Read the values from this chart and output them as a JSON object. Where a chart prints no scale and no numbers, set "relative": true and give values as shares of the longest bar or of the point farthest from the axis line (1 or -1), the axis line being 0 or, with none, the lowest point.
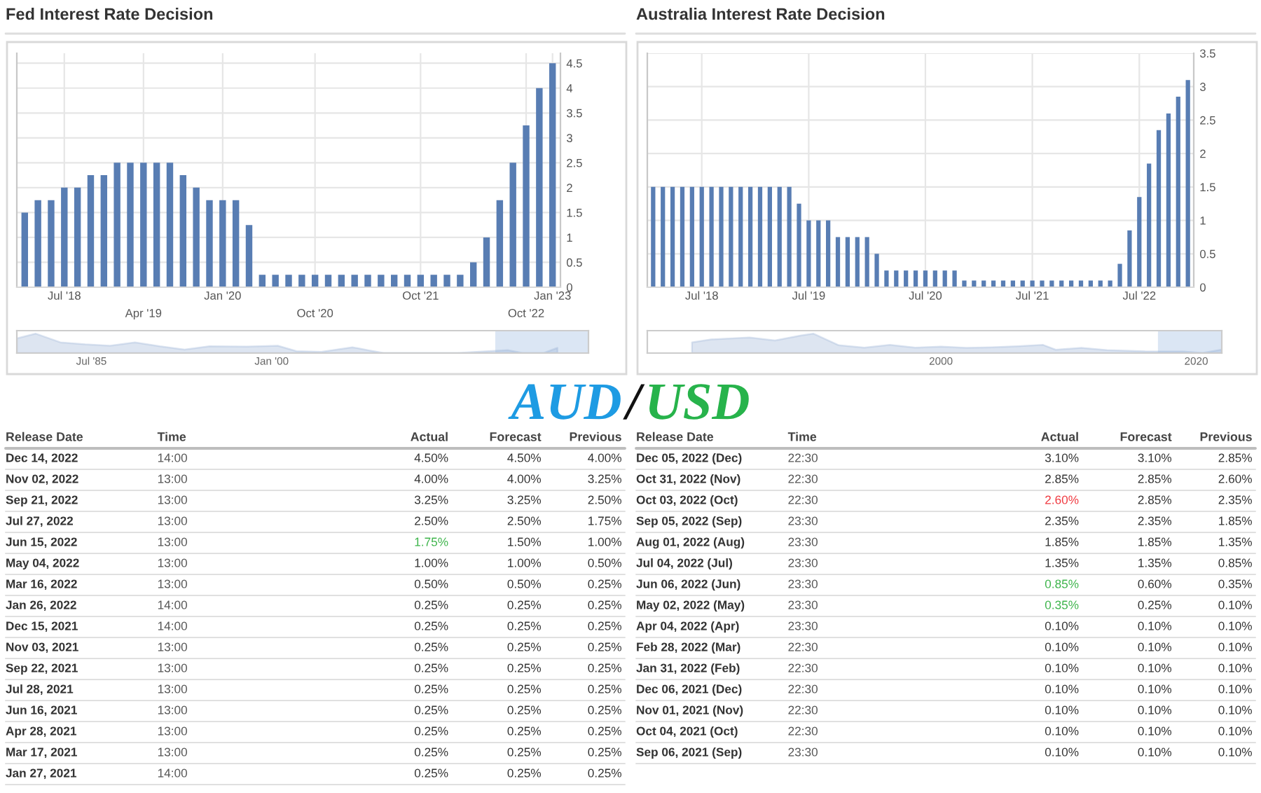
{
  "chart_data": [
    {
      "type": "bar",
      "title": "Fed Interest Rate Decision",
      "color": "#587db3",
      "grid": true,
      "ylim": [
        0,
        4.7
      ],
      "yticks": [
        0,
        0.5,
        1,
        1.5,
        2,
        2.5,
        3,
        3.5,
        4,
        4.5
      ],
      "categories": [
        null,
        null,
        null,
        "Jul '18",
        null,
        null,
        null,
        null,
        null,
        "Apr '19",
        null,
        null,
        null,
        null,
        null,
        "Jan '20",
        null,
        null,
        null,
        null,
        null,
        null,
        "Oct '20",
        null,
        null,
        null,
        null,
        null,
        null,
        null,
        "Oct '21",
        null,
        null,
        null,
        null,
        null,
        null,
        null,
        "Oct '22",
        null,
        "Jan '23"
      ],
      "values": [
        1.5,
        1.75,
        1.75,
        2,
        2,
        2.25,
        2.25,
        2.5,
        2.5,
        2.5,
        2.5,
        2.5,
        2.25,
        2,
        1.75,
        1.75,
        1.75,
        1.25,
        0.25,
        0.25,
        0.25,
        0.25,
        0.25,
        0.25,
        0.25,
        0.25,
        0.25,
        0.25,
        0.25,
        0.25,
        0.25,
        0.25,
        0.25,
        0.25,
        0.5,
        1,
        1.75,
        2.5,
        3.25,
        4,
        4.5
      ]
    },
    {
      "type": "area",
      "relative": true,
      "color": "#9db5d8",
      "xlim": [
        "1979-07",
        "2025-07"
      ],
      "xticks": [
        {
          "value": "1985-07",
          "label": "Jul '85"
        },
        {
          "value": "2000-01",
          "label": "Jan '00"
        }
      ],
      "bands": [
        {
          "axis": "x",
          "from": "2018-01",
          "to": "2025-07",
          "color": "#dbe6f4"
        }
      ],
      "x": [
        "1979-07",
        "1981-01",
        "1983-01",
        "1985-01",
        "1987-01",
        "1989-01",
        "1991-01",
        "1993-01",
        "1995-01",
        "1998-01",
        "2000-07",
        "2002-01",
        "2004-01",
        "2006-07",
        "2008-01",
        "2009-01",
        "2015-01",
        "2017-01",
        "2019-01",
        "2020-03",
        "2021-12",
        "2023-01"
      ],
      "values": [
        0.75,
        1.0,
        0.55,
        0.45,
        0.38,
        0.55,
        0.35,
        0.18,
        0.35,
        0.33,
        0.38,
        0.1,
        0.06,
        0.3,
        0.12,
        0.01,
        0.01,
        0.08,
        0.15,
        0.01,
        0.01,
        0.27
      ]
    },
    {
      "type": "other",
      "categories": [
        "Release Date",
        "Time",
        "Actual",
        "Forecast",
        "Previous"
      ],
      "annotations": [
        "Dec 14, 2022",
        "14:00",
        "4.50%",
        "4.50%",
        "4.00%",
        "Nov 02, 2022",
        "13:00",
        "4.00%",
        "4.00%",
        "3.25%",
        "Sep 21, 2022",
        "13:00",
        "3.25%",
        "3.25%",
        "2.50%",
        "Jul 27, 2022",
        "13:00",
        "2.50%",
        "2.50%",
        "1.75%",
        "Jun 15, 2022",
        "13:00",
        "1.75%",
        "1.50%",
        "1.00%",
        "May 04, 2022",
        "13:00",
        "1.00%",
        "1.00%",
        "0.50%",
        "Mar 16, 2022",
        "13:00",
        "0.50%",
        "0.50%",
        "0.25%",
        "Jan 26, 2022",
        "14:00",
        "0.25%",
        "0.25%",
        "0.25%",
        "Dec 15, 2021",
        "14:00",
        "0.25%",
        "0.25%",
        "0.25%",
        "Nov 03, 2021",
        "13:00",
        "0.25%",
        "0.25%",
        "0.25%",
        "Sep 22, 2021",
        "13:00",
        "0.25%",
        "0.25%",
        "0.25%",
        "Jul 28, 2021",
        "13:00",
        "0.25%",
        "0.25%",
        "0.25%",
        "Jun 16, 2021",
        "13:00",
        "0.25%",
        "0.25%",
        "0.25%",
        "Apr 28, 2021",
        "13:00",
        "0.25%",
        "0.25%",
        "0.25%",
        "Mar 17, 2021",
        "13:00",
        "0.25%",
        "0.25%",
        "0.25%",
        "Jan 27, 2021",
        "14:00",
        "0.25%",
        "0.25%",
        "0.25%"
      ],
      "colors": [
        null,
        null,
        null,
        null,
        null,
        null,
        null,
        null,
        null,
        null,
        null,
        null,
        null,
        null,
        null,
        null,
        null,
        null,
        null,
        null,
        null,
        null,
        "#3cb44a",
        null,
        null,
        null,
        null,
        null,
        null,
        null,
        null,
        null,
        null,
        null,
        null,
        null,
        null,
        null,
        null,
        null,
        null,
        null,
        null,
        null,
        null,
        null,
        null,
        null,
        null,
        null,
        null,
        null,
        null,
        null,
        null,
        null,
        null,
        null,
        null,
        null,
        null,
        null,
        null,
        null,
        null,
        null,
        null,
        null,
        null,
        null,
        null,
        null,
        null,
        null,
        null,
        null,
        null,
        null,
        null,
        null
      ]
    },
    {
      "type": "bar",
      "title": "Australia Interest Rate Decision",
      "color": "#587db3",
      "grid": true,
      "ylim": [
        0,
        3.5
      ],
      "yticks": [
        0,
        0.5,
        1,
        1.5,
        2,
        2.5,
        3,
        3.5
      ],
      "categories": [
        null,
        null,
        null,
        null,
        null,
        "Jul '18",
        null,
        null,
        null,
        null,
        null,
        null,
        null,
        null,
        null,
        null,
        "Jul '19",
        null,
        null,
        null,
        null,
        null,
        null,
        null,
        null,
        null,
        null,
        null,
        "Jul '20",
        null,
        null,
        null,
        null,
        null,
        null,
        null,
        null,
        null,
        null,
        "Jul '21",
        null,
        null,
        null,
        null,
        null,
        null,
        null,
        null,
        null,
        null,
        "Jul '22",
        null,
        null,
        null,
        null,
        null
      ],
      "values": [
        1.5,
        1.5,
        1.5,
        1.5,
        1.5,
        1.5,
        1.5,
        1.5,
        1.5,
        1.5,
        1.5,
        1.5,
        1.5,
        1.5,
        1.5,
        1.25,
        1,
        1,
        1,
        0.75,
        0.75,
        0.75,
        0.75,
        0.5,
        0.25,
        0.25,
        0.25,
        0.25,
        0.25,
        0.25,
        0.25,
        0.25,
        0.1,
        0.1,
        0.1,
        0.1,
        0.1,
        0.1,
        0.1,
        0.1,
        0.1,
        0.1,
        0.1,
        0.1,
        0.1,
        0.1,
        0.1,
        0.1,
        0.35,
        0.85,
        1.35,
        1.85,
        2.35,
        2.6,
        2.85,
        3.1
      ]
    },
    {
      "type": "area",
      "relative": true,
      "color": "#9db5d8",
      "xlim": [
        1977,
        2022
      ],
      "xticks": [
        2000,
        2020
      ],
      "bands": [
        {
          "axis": "x",
          "from": 2017,
          "to": 2022,
          "color": "#dbe6f4"
        }
      ],
      "x": [
        1980.5,
        1982,
        1985,
        1987,
        1989,
        1990,
        1992,
        1994,
        1996,
        1998,
        2000,
        2002,
        2004,
        2006,
        2008,
        2009,
        2011,
        2013,
        2016,
        2019,
        2020.5,
        2022
      ],
      "values": [
        0.55,
        0.7,
        0.8,
        0.65,
        0.9,
        1.0,
        0.4,
        0.28,
        0.42,
        0.28,
        0.33,
        0.27,
        0.3,
        0.35,
        0.42,
        0.17,
        0.27,
        0.15,
        0.09,
        0.08,
        0.01,
        0.18
      ]
    },
    {
      "type": "other",
      "categories": [
        "Release Date",
        "Time",
        "Actual",
        "Forecast",
        "Previous"
      ],
      "annotations": [
        "Dec 05, 2022 (Dec)",
        "22:30",
        "3.10%",
        "3.10%",
        "2.85%",
        "Oct 31, 2022 (Nov)",
        "22:30",
        "2.85%",
        "2.85%",
        "2.60%",
        "Oct 03, 2022 (Oct)",
        "22:30",
        "2.60%",
        "2.85%",
        "2.35%",
        "Sep 05, 2022 (Sep)",
        "23:30",
        "2.35%",
        "2.35%",
        "1.85%",
        "Aug 01, 2022 (Aug)",
        "23:30",
        "1.85%",
        "1.85%",
        "1.35%",
        "Jul 04, 2022 (Jul)",
        "23:30",
        "1.35%",
        "1.35%",
        "0.85%",
        "Jun 06, 2022 (Jun)",
        "23:30",
        "0.85%",
        "0.60%",
        "0.35%",
        "May 02, 2022 (May)",
        "23:30",
        "0.35%",
        "0.25%",
        "0.10%",
        "Apr 04, 2022 (Apr)",
        "23:30",
        "0.10%",
        "0.10%",
        "0.10%",
        "Feb 28, 2022 (Mar)",
        "22:30",
        "0.10%",
        "0.10%",
        "0.10%",
        "Jan 31, 2022 (Feb)",
        "22:30",
        "0.10%",
        "0.10%",
        "0.10%",
        "Dec 06, 2021 (Dec)",
        "22:30",
        "0.10%",
        "0.10%",
        "0.10%",
        "Nov 01, 2021 (Nov)",
        "22:30",
        "0.10%",
        "0.10%",
        "0.10%",
        "Oct 04, 2021 (Oct)",
        "22:30",
        "0.10%",
        "0.10%",
        "0.10%",
        "Sep 06, 2021 (Sep)",
        "23:30",
        "0.10%",
        "0.10%",
        "0.10%"
      ],
      "colors": [
        null,
        null,
        null,
        null,
        null,
        null,
        null,
        null,
        null,
        null,
        null,
        null,
        "#f0383f",
        null,
        null,
        null,
        null,
        null,
        null,
        null,
        null,
        null,
        null,
        null,
        null,
        null,
        null,
        null,
        null,
        null,
        null,
        null,
        "#3cb44a",
        null,
        null,
        null,
        null,
        "#3cb44a",
        null,
        null,
        null,
        null,
        null,
        null,
        null,
        null,
        null,
        null,
        null,
        null,
        null,
        null,
        null,
        null,
        null,
        null,
        null,
        null,
        null,
        null,
        null,
        null,
        null,
        null,
        null,
        null,
        null,
        null,
        null,
        null,
        null,
        null,
        null,
        null,
        null
      ]
    },
    {
      "type": "other",
      "annotations": [
        "AUD",
        "/",
        "USD"
      ],
      "colors": [
        "#1e9be3",
        "#111111",
        "#27b34b"
      ]
    }
  ]
}
